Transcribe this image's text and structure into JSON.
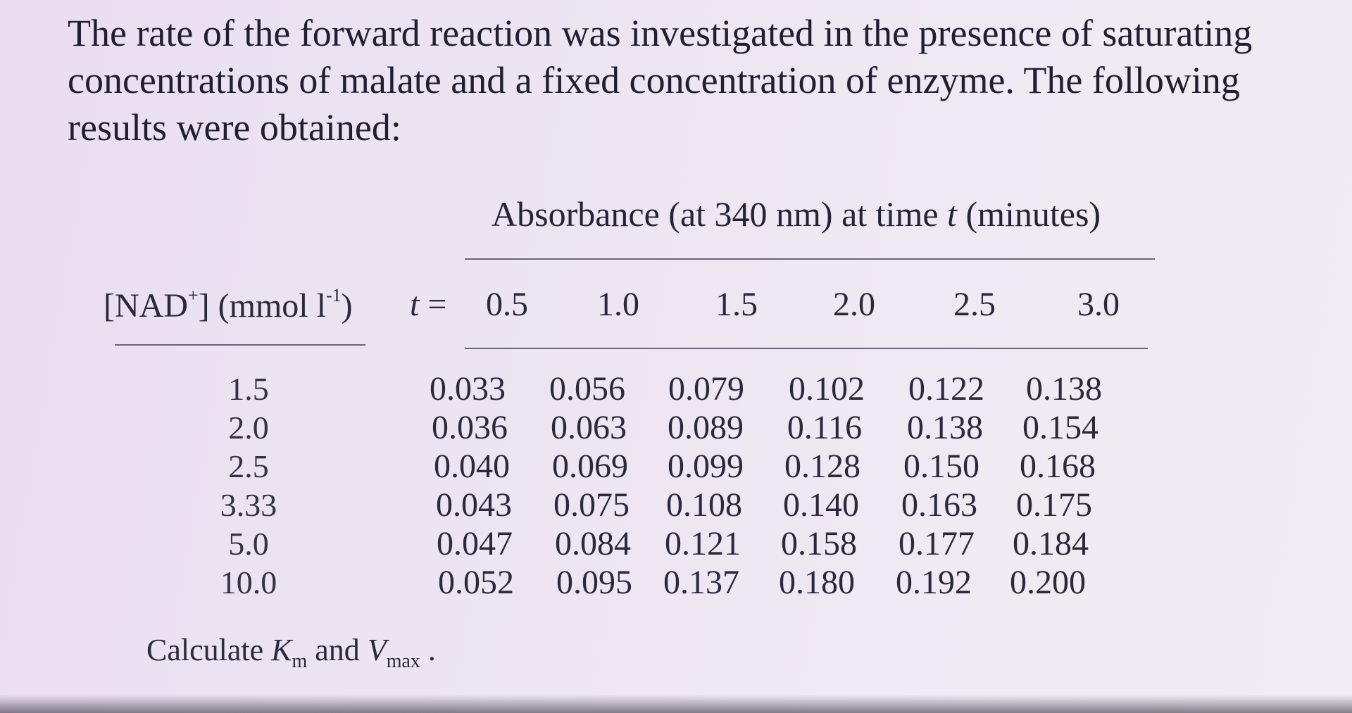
{
  "intro": {
    "line1": "The rate of the forward reaction was investigated in the presence of saturating",
    "line2": "concentrations of malate and a fixed concentration of enzyme. The following",
    "line3": "results were obtained:"
  },
  "table": {
    "column_caption": "Absorbance (at 340 nm) at time t (minutes)",
    "row_caption": {
      "prefix": "[NAD",
      "superscript": "+",
      "suffix": "] (mmol l",
      "unit_exponent": "-1",
      "close": ")"
    },
    "time_prefix": "t =",
    "times": [
      "0.5",
      "1.0",
      "1.5",
      "2.0",
      "2.5",
      "3.0"
    ],
    "rows": [
      {
        "conc": "1.5",
        "values": [
          "0.033",
          "0.056",
          "0.079",
          "0.102",
          "0.122",
          "0.138"
        ]
      },
      {
        "conc": "2.0",
        "values": [
          "0.036",
          "0.063",
          "0.089",
          "0.116",
          "0.138",
          "0.154"
        ]
      },
      {
        "conc": "2.5",
        "values": [
          "0.040",
          "0.069",
          "0.099",
          "0.128",
          "0.150",
          "0.168"
        ]
      },
      {
        "conc": "3.33",
        "values": [
          "0.043",
          "0.075",
          "0.108",
          "0.140",
          "0.163",
          "0.175"
        ]
      },
      {
        "conc": "5.0",
        "values": [
          "0.047",
          "0.084",
          "0.121",
          "0.158",
          "0.177",
          "0.184"
        ]
      },
      {
        "conc": "10.0",
        "values": [
          "0.052",
          "0.095",
          "0.137",
          "0.180",
          "0.192",
          "0.200"
        ]
      }
    ]
  },
  "question": {
    "prefix": "Calculate ",
    "km_symbol": "K",
    "km_sub": "m",
    "middle": " and ",
    "vmax_symbol": "V",
    "vmax_sub": "max",
    "end": " ."
  }
}
